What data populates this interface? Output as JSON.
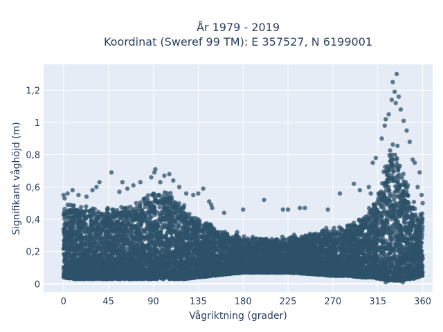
{
  "chart_data": {
    "type": "scatter",
    "title_line1": "År 1979 - 2019",
    "title_line2": "Koordinat (Sweref 99 TM): E 357527, N 6199001",
    "xlabel": "Vågriktning (grader)",
    "ylabel": "Signifikant våghöjd (m)",
    "xlim": [
      -20,
      370
    ],
    "ylim": [
      -0.05,
      1.36
    ],
    "x_ticks": [
      0,
      45,
      90,
      135,
      180,
      225,
      270,
      315,
      360
    ],
    "y_ticks": [
      0,
      0.2,
      0.4,
      0.6,
      0.8,
      1,
      1.2
    ],
    "y_tick_labels": [
      "0",
      "0,2",
      "0,4",
      "0,6",
      "0,8",
      "1",
      "1,2"
    ],
    "grid": true,
    "plot_bg": "#e5ecf6",
    "grid_color": "#ffffff",
    "marker_color": "#2e5169",
    "envelope": {
      "x": [
        0,
        10,
        20,
        30,
        45,
        60,
        75,
        90,
        100,
        110,
        120,
        135,
        150,
        165,
        180,
        200,
        225,
        250,
        270,
        285,
        300,
        310,
        315,
        320,
        325,
        330,
        335,
        340,
        345,
        350,
        355,
        360
      ],
      "upper": [
        0.5,
        0.52,
        0.5,
        0.48,
        0.48,
        0.5,
        0.52,
        0.58,
        0.6,
        0.56,
        0.5,
        0.42,
        0.38,
        0.32,
        0.3,
        0.29,
        0.3,
        0.33,
        0.36,
        0.38,
        0.42,
        0.5,
        0.6,
        0.72,
        0.82,
        0.92,
        0.9,
        0.78,
        0.62,
        0.52,
        0.48,
        0.45
      ],
      "lower": [
        0.04,
        0.03,
        0.03,
        0.03,
        0.03,
        0.03,
        0.03,
        0.03,
        0.03,
        0.03,
        0.03,
        0.04,
        0.05,
        0.06,
        0.07,
        0.07,
        0.07,
        0.06,
        0.05,
        0.05,
        0.04,
        0.04,
        0.03,
        0.03,
        0.02,
        0.02,
        0.02,
        0.02,
        0.03,
        0.03,
        0.04,
        0.05
      ]
    },
    "outliers": [
      {
        "x": 334,
        "y": 1.3
      },
      {
        "x": 330,
        "y": 1.25
      },
      {
        "x": 332,
        "y": 1.19
      },
      {
        "x": 336,
        "y": 1.16
      },
      {
        "x": 329,
        "y": 1.14
      },
      {
        "x": 333,
        "y": 1.12
      },
      {
        "x": 338,
        "y": 1.08
      },
      {
        "x": 326,
        "y": 1.05
      },
      {
        "x": 341,
        "y": 1.01
      },
      {
        "x": 322,
        "y": 0.98
      },
      {
        "x": 323,
        "y": 1.02
      },
      {
        "x": 344,
        "y": 0.95
      },
      {
        "x": 319,
        "y": 0.9
      },
      {
        "x": 347,
        "y": 0.88
      },
      {
        "x": 350,
        "y": 0.77
      },
      {
        "x": 352,
        "y": 0.75
      },
      {
        "x": 357,
        "y": 0.69
      },
      {
        "x": 310,
        "y": 0.75
      },
      {
        "x": 313,
        "y": 0.78
      },
      {
        "x": 306,
        "y": 0.6
      },
      {
        "x": 308,
        "y": 0.56
      },
      {
        "x": 291,
        "y": 0.62
      },
      {
        "x": 297,
        "y": 0.58
      },
      {
        "x": 277,
        "y": 0.56
      },
      {
        "x": 265,
        "y": 0.46
      },
      {
        "x": 237,
        "y": 0.47
      },
      {
        "x": 242,
        "y": 0.47
      },
      {
        "x": 220,
        "y": 0.46
      },
      {
        "x": 225,
        "y": 0.46
      },
      {
        "x": 201,
        "y": 0.52
      },
      {
        "x": 180,
        "y": 0.46
      },
      {
        "x": 174,
        "y": 0.32
      },
      {
        "x": 161,
        "y": 0.44
      },
      {
        "x": 146,
        "y": 0.51
      },
      {
        "x": 148,
        "y": 0.49
      },
      {
        "x": 149,
        "y": 0.47
      },
      {
        "x": 140,
        "y": 0.59
      },
      {
        "x": 135,
        "y": 0.56
      },
      {
        "x": 130,
        "y": 0.55
      },
      {
        "x": 123,
        "y": 0.56
      },
      {
        "x": 110,
        "y": 0.64
      },
      {
        "x": 106,
        "y": 0.68
      },
      {
        "x": 101,
        "y": 0.67
      },
      {
        "x": 97,
        "y": 0.63
      },
      {
        "x": 92,
        "y": 0.71
      },
      {
        "x": 91,
        "y": 0.69
      },
      {
        "x": 88,
        "y": 0.66
      },
      {
        "x": 77,
        "y": 0.63
      },
      {
        "x": 70,
        "y": 0.61
      },
      {
        "x": 64,
        "y": 0.59
      },
      {
        "x": 59,
        "y": 0.63
      },
      {
        "x": 56,
        "y": 0.57
      },
      {
        "x": 48,
        "y": 0.69
      },
      {
        "x": 36,
        "y": 0.63
      },
      {
        "x": 33,
        "y": 0.6
      },
      {
        "x": 29,
        "y": 0.58
      },
      {
        "x": 23,
        "y": 0.54
      },
      {
        "x": 15,
        "y": 0.55
      },
      {
        "x": 9,
        "y": 0.58
      },
      {
        "x": 4,
        "y": 0.56
      },
      {
        "x": 0,
        "y": 0.55
      },
      {
        "x": 1,
        "y": 0.53
      },
      {
        "x": 116,
        "y": 0.6
      },
      {
        "x": 355,
        "y": 0.6
      },
      {
        "x": 360,
        "y": 0.5
      },
      {
        "x": 359,
        "y": 0.55
      },
      {
        "x": 309,
        "y": 0.08
      },
      {
        "x": 311,
        "y": 0.1
      },
      {
        "x": 323,
        "y": 0.01
      },
      {
        "x": 326,
        "y": 0.02
      },
      {
        "x": 340,
        "y": 0.01
      },
      {
        "x": 300,
        "y": 0.05
      }
    ]
  }
}
